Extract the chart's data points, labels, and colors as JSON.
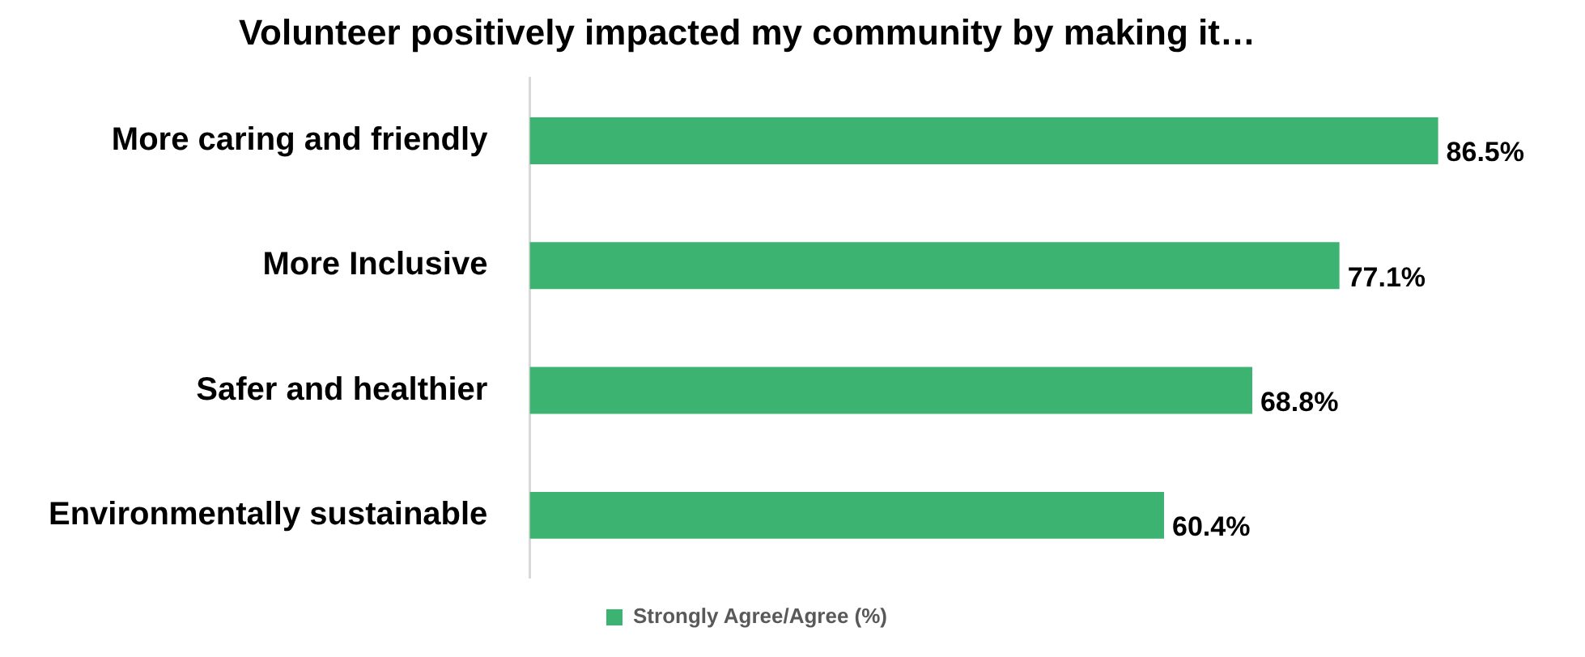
{
  "chart_data": {
    "type": "bar",
    "orientation": "horizontal",
    "relative": false,
    "title": "Volunteer positively impacted my community by making it…",
    "categories": [
      "More caring and friendly",
      "More Inclusive",
      "Safer and healthier",
      "Environmentally sustainable"
    ],
    "series": [
      {
        "name": "Strongly Agree/Agree (%)",
        "color": "#3cb371",
        "values": [
          86.5,
          77.1,
          68.8,
          60.4
        ],
        "value_labels": [
          "86.5%",
          "77.1%",
          "68.8%",
          "60.4%"
        ]
      }
    ],
    "legend": "bottom",
    "grid": false
  }
}
